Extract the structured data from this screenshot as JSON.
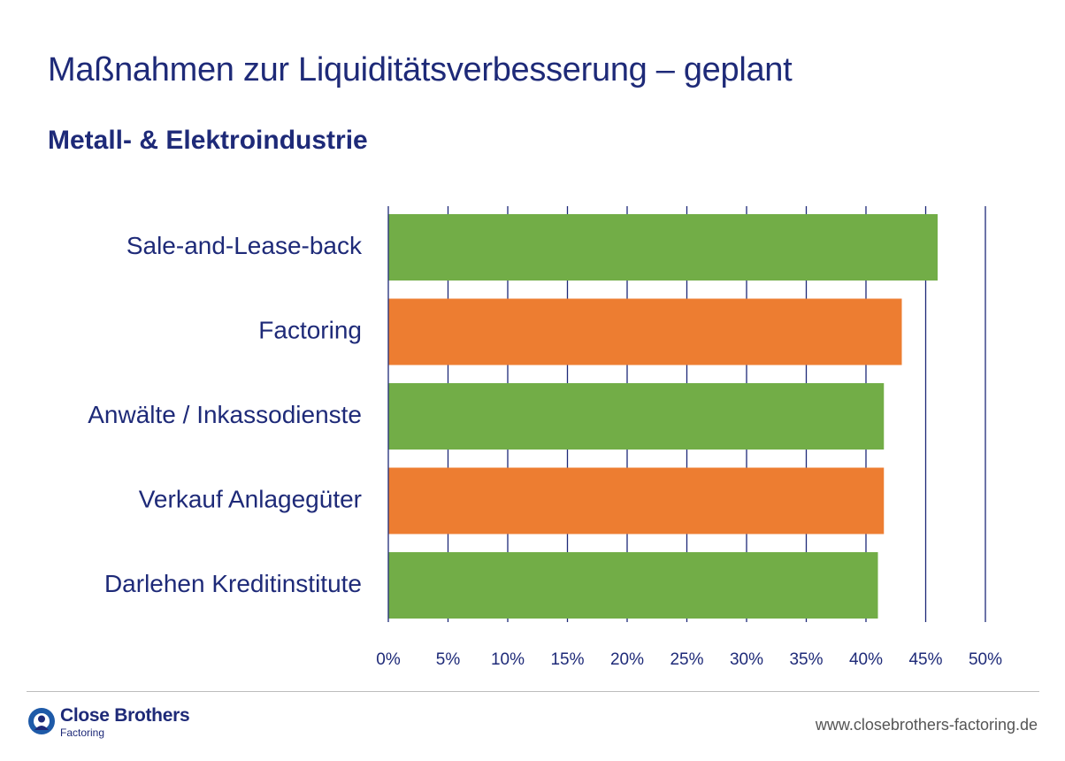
{
  "header": {
    "title": "Maßnahmen zur Liquiditätsverbesserung – geplant",
    "subtitle": "Metall- & Elektroindustrie"
  },
  "chart_data": {
    "type": "bar",
    "orientation": "horizontal",
    "title": "Maßnahmen zur Liquiditätsverbesserung – geplant",
    "subtitle": "Metall- & Elektroindustrie",
    "categories": [
      "Sale-and-Lease-back",
      "Factoring",
      "Anwälte / Inkassodienste",
      "Verkauf Anlagegüter",
      "Darlehen Kreditinstitute"
    ],
    "values": [
      46,
      43,
      41.5,
      41.5,
      41
    ],
    "bar_colors": [
      "#72ad47",
      "#ed7d31",
      "#72ad47",
      "#ed7d31",
      "#72ad47"
    ],
    "xlim": [
      0,
      50
    ],
    "xticks": [
      0,
      5,
      10,
      15,
      20,
      25,
      30,
      35,
      40,
      45,
      50
    ],
    "xtick_labels": [
      "0%",
      "5%",
      "10%",
      "15%",
      "20%",
      "25%",
      "30%",
      "35%",
      "40%",
      "45%",
      "50%"
    ],
    "xlabel": "",
    "ylabel": "",
    "grid": true,
    "grid_color": "#1e2a78",
    "label_color": "#1e2a78"
  },
  "footer": {
    "brand_name": "Close Brothers",
    "brand_sub": "Factoring",
    "url": "www.closebrothers-factoring.de"
  }
}
